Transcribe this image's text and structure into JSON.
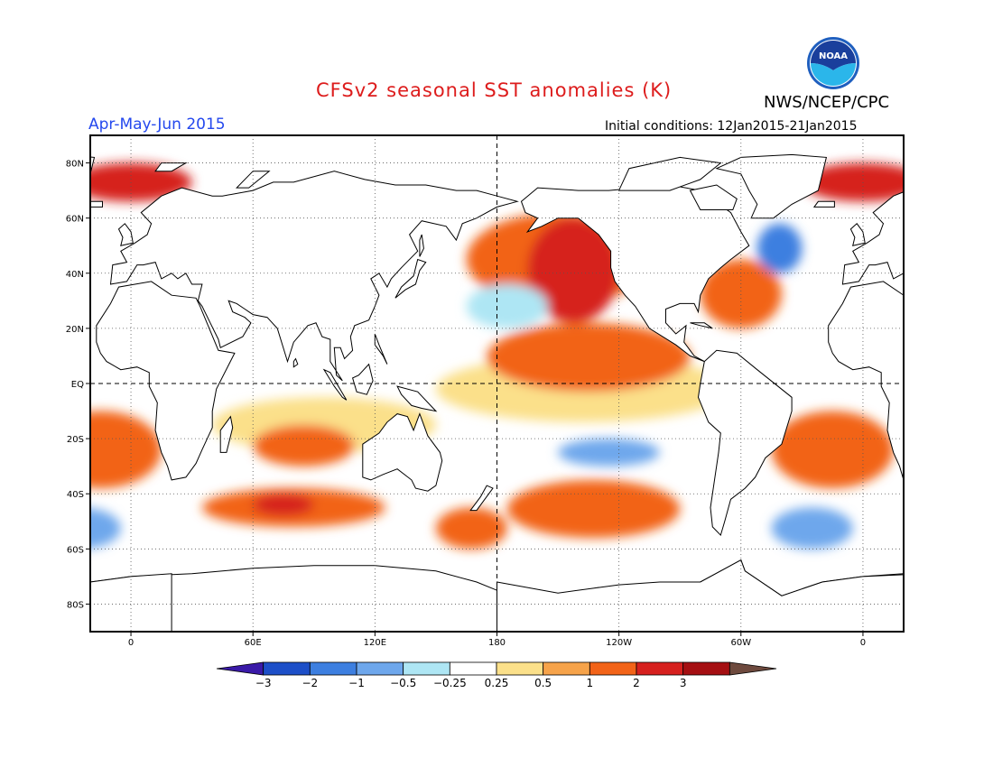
{
  "header": {
    "title": "CFSv2 seasonal SST anomalies (K)",
    "agency": "NWS/NCEP/CPC",
    "period": "Apr-May-Jun 2015",
    "initial_conditions": "Initial conditions: 12Jan2015-21Jan2015",
    "logo_text": "NOAA"
  },
  "colors": {
    "title": "#dd1c1c",
    "period": "#2448ee",
    "land": "#ffffff",
    "gridline": "#555555"
  },
  "axes": {
    "lon_labels": [
      "0",
      "60E",
      "120E",
      "180",
      "120W",
      "60W",
      "0"
    ],
    "lat_labels": [
      "80N",
      "60N",
      "40N",
      "20N",
      "EQ",
      "20S",
      "40S",
      "60S",
      "80S"
    ]
  },
  "colorbar": {
    "labels": [
      "-3",
      "-2",
      "-1",
      "-0.5",
      "-0.25",
      "0.25",
      "0.5",
      "1",
      "2",
      "3"
    ],
    "colors": [
      "#3a1aa8",
      "#1d4fc8",
      "#3d7fe0",
      "#6ea7ec",
      "#aee6f4",
      "#ffffff",
      "#fbe08a",
      "#f6a34a",
      "#f26318",
      "#d6201e",
      "#a50f12",
      "#6e4a3e"
    ]
  },
  "map_regions": [
    {
      "name": "nino-tongue-weak",
      "level": 0.5,
      "lon": [
        150,
        295
      ],
      "lat": [
        -14,
        10
      ],
      "color": "#fbe08a"
    },
    {
      "name": "north-pacific-warm",
      "level": 1,
      "lon": [
        165,
        255
      ],
      "lat": [
        28,
        62
      ],
      "color": "#f26318"
    },
    {
      "name": "northeast-pacific-strong",
      "level": 2,
      "lon": [
        195,
        240
      ],
      "lat": [
        22,
        60
      ],
      "color": "#d6201e"
    },
    {
      "name": "nino-tongue-warm",
      "level": 1,
      "lon": [
        175,
        275
      ],
      "lat": [
        -3,
        22
      ],
      "color": "#f26318"
    },
    {
      "name": "central-north-pacific-cool",
      "level": -0.25,
      "lon": [
        165,
        205
      ],
      "lat": [
        20,
        36
      ],
      "color": "#aee6f4"
    },
    {
      "name": "south-indian-weak",
      "level": 0.5,
      "lon": [
        40,
        150
      ],
      "lat": [
        -25,
        -5
      ],
      "color": "#fbe08a"
    },
    {
      "name": "south-indian-warm",
      "level": 1,
      "lon": [
        60,
        110
      ],
      "lat": [
        -30,
        -15
      ],
      "color": "#f26318"
    },
    {
      "name": "southern-ocean-warm",
      "level": 1,
      "lon": [
        35,
        125
      ],
      "lat": [
        -52,
        -38
      ],
      "color": "#f26318"
    },
    {
      "name": "southern-ocean-strong",
      "level": 2,
      "lon": [
        60,
        90
      ],
      "lat": [
        -48,
        -40
      ],
      "color": "#d6201e"
    },
    {
      "name": "south-atlantic-warm",
      "level": 1,
      "lon": [
        -45,
        15
      ],
      "lat": [
        -38,
        -10
      ],
      "color": "#f26318"
    },
    {
      "name": "south-pacific-warm",
      "level": 1,
      "lon": [
        185,
        270
      ],
      "lat": [
        -56,
        -35
      ],
      "color": "#f26318"
    },
    {
      "name": "north-atlantic-warm",
      "level": 1,
      "lon": [
        -80,
        -40
      ],
      "lat": [
        20,
        45
      ],
      "color": "#f26318"
    },
    {
      "name": "north-atlantic-cool",
      "level": -1,
      "lon": [
        -52,
        -30
      ],
      "lat": [
        40,
        58
      ],
      "color": "#3d7fe0"
    },
    {
      "name": "arctic-atlantic-warm",
      "level": 2,
      "lon": [
        -30,
        30
      ],
      "lat": [
        66,
        80
      ],
      "color": "#d6201e"
    },
    {
      "name": "south-pacific-cool",
      "level": -0.5,
      "lon": [
        210,
        260
      ],
      "lat": [
        -30,
        -20
      ],
      "color": "#6ea7ec"
    },
    {
      "name": "southern-atlantic-cool",
      "level": -0.5,
      "lon": [
        -45,
        -5
      ],
      "lat": [
        -60,
        -45
      ],
      "color": "#6ea7ec"
    },
    {
      "name": "tasman-warm",
      "level": 1,
      "lon": [
        150,
        185
      ],
      "lat": [
        -60,
        -45
      ],
      "color": "#f26318"
    }
  ]
}
